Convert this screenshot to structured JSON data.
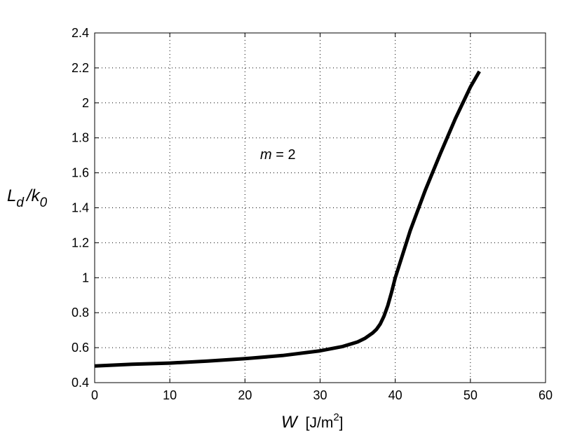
{
  "chart_data": {
    "type": "line",
    "xlabel": {
      "main": "W",
      "unit": "[J/m",
      "unit_sup": "2",
      "unit_close": "]"
    },
    "ylabel": {
      "main": "L",
      "sub1": "d",
      "slash": "/k",
      "sub2": "0"
    },
    "annotation": {
      "var": "m",
      "text": " = 2"
    },
    "xlim": [
      0,
      60
    ],
    "ylim": [
      0.4,
      2.4
    ],
    "x_ticks": [
      0,
      10,
      20,
      30,
      40,
      50,
      60
    ],
    "y_ticks": [
      0.4,
      0.6,
      0.8,
      1,
      1.2,
      1.4,
      1.6,
      1.8,
      2,
      2.2,
      2.4
    ],
    "x_tick_labels": [
      "0",
      "10",
      "20",
      "30",
      "40",
      "50",
      "60"
    ],
    "y_tick_labels": [
      "0.4",
      "0.6",
      "0.8",
      "1",
      "1.2",
      "1.4",
      "1.6",
      "1.8",
      "2",
      "2.2",
      "2.4"
    ],
    "grid": true,
    "series": [
      {
        "color": "#000000",
        "x": [
          0,
          5,
          10,
          15,
          20,
          25,
          30,
          33,
          35,
          36,
          37,
          37.5,
          38,
          38.5,
          39,
          39.5,
          40,
          42,
          44,
          46,
          48,
          50,
          51.2
        ],
        "y": [
          0.495,
          0.505,
          0.512,
          0.523,
          0.537,
          0.555,
          0.582,
          0.607,
          0.633,
          0.654,
          0.684,
          0.705,
          0.735,
          0.78,
          0.84,
          0.915,
          1.0,
          1.27,
          1.5,
          1.71,
          1.91,
          2.09,
          2.18
        ]
      }
    ]
  }
}
